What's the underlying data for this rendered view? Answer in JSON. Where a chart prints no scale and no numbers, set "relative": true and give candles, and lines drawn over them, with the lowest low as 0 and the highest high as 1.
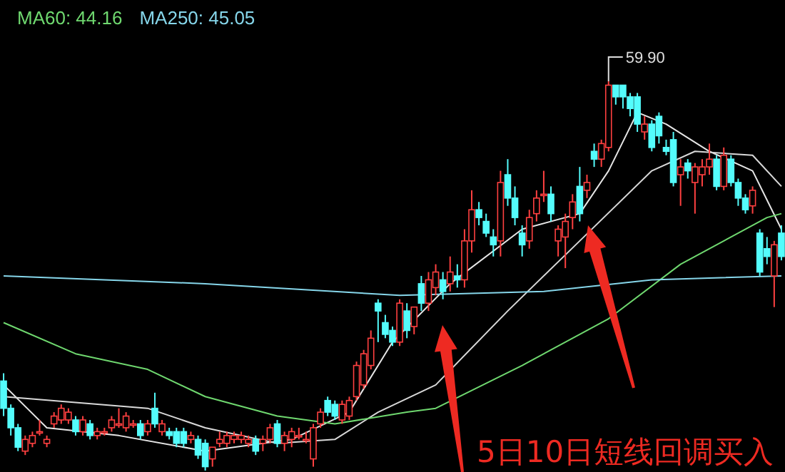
{
  "chart_data": {
    "type": "candlestick",
    "relative": true,
    "legend": "top left",
    "categories": [
      null,
      null,
      null,
      null,
      null,
      null,
      null,
      null,
      null,
      null,
      null,
      null,
      null,
      null,
      null,
      null,
      null,
      null,
      null,
      null,
      null,
      null,
      null,
      null,
      null,
      null,
      null,
      null,
      null,
      null,
      null,
      null,
      null,
      null,
      null,
      null,
      null,
      null,
      null,
      null,
      null,
      null,
      null,
      null,
      null,
      null,
      null,
      null,
      null,
      null,
      null,
      null,
      null,
      null,
      null,
      null,
      null,
      null,
      null,
      null,
      null,
      null,
      null,
      null,
      null,
      null,
      null,
      null,
      null,
      null,
      null,
      null,
      null,
      null,
      null,
      null,
      null,
      null,
      null,
      null,
      null,
      null,
      null,
      null,
      null,
      null,
      null,
      null,
      null,
      null,
      null,
      null,
      null,
      null,
      null,
      null,
      null,
      null,
      null,
      null,
      null,
      null,
      null,
      null,
      null,
      null,
      null,
      null,
      null
    ],
    "ohlc": [
      [
        0.23,
        0.25,
        0.14,
        0.16
      ],
      [
        0.16,
        0.17,
        0.09,
        0.11
      ],
      [
        0.11,
        0.12,
        0.05,
        0.06
      ],
      [
        0.05,
        0.09,
        0.04,
        0.08
      ],
      [
        0.07,
        0.1,
        0.06,
        0.09
      ],
      [
        0.1,
        0.13,
        0.09,
        0.1
      ],
      [
        0.07,
        0.09,
        0.06,
        0.08
      ],
      [
        0.12,
        0.15,
        0.11,
        0.14
      ],
      [
        0.13,
        0.17,
        0.12,
        0.16
      ],
      [
        0.13,
        0.16,
        0.12,
        0.15
      ],
      [
        0.13,
        0.14,
        0.09,
        0.1
      ],
      [
        0.1,
        0.14,
        0.09,
        0.13
      ],
      [
        0.12,
        0.13,
        0.08,
        0.09
      ],
      [
        0.09,
        0.11,
        0.08,
        0.1
      ],
      [
        0.1,
        0.11,
        0.09,
        0.1
      ],
      [
        0.11,
        0.14,
        0.1,
        0.13
      ],
      [
        0.12,
        0.16,
        0.11,
        0.12
      ],
      [
        0.11,
        0.15,
        0.1,
        0.14
      ],
      [
        0.12,
        0.13,
        0.11,
        0.12
      ],
      [
        0.12,
        0.13,
        0.08,
        0.09
      ],
      [
        0.1,
        0.13,
        0.09,
        0.12
      ],
      [
        0.16,
        0.2,
        0.11,
        0.12
      ],
      [
        0.1,
        0.13,
        0.09,
        0.12
      ],
      [
        0.1,
        0.11,
        0.08,
        0.09
      ],
      [
        0.1,
        0.11,
        0.06,
        0.07
      ],
      [
        0.1,
        0.11,
        0.06,
        0.07
      ],
      [
        0.08,
        0.1,
        0.07,
        0.09
      ],
      [
        0.08,
        0.09,
        0.03,
        0.04
      ],
      [
        0.07,
        0.08,
        0.0,
        0.01
      ],
      [
        0.03,
        0.06,
        0.01,
        0.06
      ],
      [
        0.07,
        0.1,
        0.06,
        0.08
      ],
      [
        0.07,
        0.1,
        0.06,
        0.09
      ],
      [
        0.08,
        0.1,
        0.07,
        0.09
      ],
      [
        0.08,
        0.1,
        0.07,
        0.09
      ],
      [
        0.07,
        0.09,
        0.06,
        0.08
      ],
      [
        0.08,
        0.09,
        0.04,
        0.05
      ],
      [
        0.07,
        0.09,
        0.05,
        0.08
      ],
      [
        0.08,
        0.12,
        0.07,
        0.11
      ],
      [
        0.12,
        0.13,
        0.06,
        0.07
      ],
      [
        0.07,
        0.1,
        0.05,
        0.09
      ],
      [
        0.08,
        0.11,
        0.06,
        0.1
      ],
      [
        0.09,
        0.11,
        0.08,
        0.09
      ],
      [
        0.08,
        0.1,
        0.07,
        0.08
      ],
      [
        0.03,
        0.12,
        0.01,
        0.11
      ],
      [
        0.12,
        0.16,
        0.11,
        0.15
      ],
      [
        0.18,
        0.19,
        0.14,
        0.15
      ],
      [
        0.17,
        0.18,
        0.13,
        0.14
      ],
      [
        0.13,
        0.18,
        0.12,
        0.17
      ],
      [
        0.14,
        0.19,
        0.13,
        0.18
      ],
      [
        0.19,
        0.28,
        0.18,
        0.27
      ],
      [
        0.22,
        0.31,
        0.21,
        0.3
      ],
      [
        0.27,
        0.36,
        0.26,
        0.34
      ],
      [
        0.43,
        0.44,
        0.33,
        0.41
      ],
      [
        0.38,
        0.4,
        0.34,
        0.35
      ],
      [
        0.36,
        0.37,
        0.32,
        0.33
      ],
      [
        0.33,
        0.44,
        0.32,
        0.43
      ],
      [
        0.41,
        0.43,
        0.34,
        0.36
      ],
      [
        0.37,
        0.42,
        0.35,
        0.42
      ],
      [
        0.48,
        0.5,
        0.41,
        0.43
      ],
      [
        0.43,
        0.51,
        0.41,
        0.49
      ],
      [
        0.47,
        0.53,
        0.45,
        0.51
      ],
      [
        0.49,
        0.51,
        0.44,
        0.46
      ],
      [
        0.48,
        0.55,
        0.46,
        0.51
      ],
      [
        0.5,
        0.53,
        0.47,
        0.49
      ],
      [
        0.49,
        0.62,
        0.47,
        0.59
      ],
      [
        0.59,
        0.72,
        0.56,
        0.67
      ],
      [
        0.67,
        0.69,
        0.63,
        0.65
      ],
      [
        0.64,
        0.66,
        0.6,
        0.61
      ],
      [
        0.6,
        0.62,
        0.55,
        0.58
      ],
      [
        0.59,
        0.77,
        0.55,
        0.74
      ],
      [
        0.76,
        0.8,
        0.68,
        0.7
      ],
      [
        0.7,
        0.73,
        0.63,
        0.65
      ],
      [
        0.61,
        0.63,
        0.55,
        0.58
      ],
      [
        0.59,
        0.67,
        0.57,
        0.65
      ],
      [
        0.66,
        0.72,
        0.64,
        0.7
      ],
      [
        0.71,
        0.77,
        0.69,
        0.71
      ],
      [
        0.71,
        0.73,
        0.64,
        0.66
      ],
      [
        0.59,
        0.63,
        0.55,
        0.62
      ],
      [
        0.6,
        0.66,
        0.52,
        0.64
      ],
      [
        0.65,
        0.71,
        0.62,
        0.69
      ],
      [
        0.73,
        0.78,
        0.64,
        0.66
      ],
      [
        0.72,
        0.76,
        0.7,
        0.74
      ],
      [
        0.82,
        0.84,
        0.78,
        0.8
      ],
      [
        0.8,
        0.85,
        0.78,
        0.84
      ],
      [
        0.83,
        1.0,
        0.82,
        0.99
      ],
      [
        0.99,
        0.99,
        0.94,
        0.96
      ],
      [
        0.99,
        0.99,
        0.93,
        0.96
      ],
      [
        0.96,
        0.97,
        0.91,
        0.93
      ],
      [
        0.96,
        0.97,
        0.87,
        0.89
      ],
      [
        0.87,
        0.91,
        0.85,
        0.89
      ],
      [
        0.89,
        0.9,
        0.82,
        0.83
      ],
      [
        0.91,
        0.92,
        0.84,
        0.86
      ],
      [
        0.83,
        0.85,
        0.81,
        0.82
      ],
      [
        0.85,
        0.87,
        0.73,
        0.74
      ],
      [
        0.76,
        0.8,
        0.68,
        0.78
      ],
      [
        0.79,
        0.8,
        0.75,
        0.77
      ],
      [
        0.74,
        0.79,
        0.66,
        0.78
      ],
      [
        0.76,
        0.8,
        0.73,
        0.78
      ],
      [
        0.78,
        0.84,
        0.76,
        0.8
      ],
      [
        0.8,
        0.81,
        0.72,
        0.73
      ],
      [
        0.73,
        0.83,
        0.72,
        0.81
      ],
      [
        0.8,
        0.81,
        0.73,
        0.74
      ],
      [
        0.74,
        0.75,
        0.68,
        0.7
      ],
      [
        0.7,
        0.71,
        0.66,
        0.67
      ],
      [
        0.68,
        0.73,
        0.66,
        0.72
      ],
      [
        0.61,
        0.62,
        0.5,
        0.51
      ],
      [
        0.57,
        0.6,
        0.53,
        0.55
      ],
      [
        0.5,
        0.59,
        0.42,
        0.58
      ],
      [
        0.61,
        0.63,
        0.54,
        0.55
      ]
    ],
    "series": [
      {
        "type": "line",
        "color": "#e6e6e6",
        "values": [
          0.22,
          null,
          null,
          null,
          null,
          null,
          0.11,
          null,
          null,
          null,
          null,
          null,
          null,
          null,
          null,
          null,
          0.09,
          null,
          null,
          null,
          null,
          null,
          null,
          null,
          null,
          null,
          null,
          null,
          0.05,
          null,
          null,
          null,
          null,
          null,
          null,
          null,
          null,
          null,
          null,
          null,
          0.08,
          null,
          null,
          null,
          null,
          null,
          null,
          null,
          0.15,
          null,
          null,
          null,
          null,
          null,
          0.33,
          null,
          null,
          null,
          null,
          null,
          null,
          null,
          0.48,
          null,
          null,
          null,
          null,
          null,
          null,
          null,
          null,
          null,
          0.62,
          null,
          null,
          null,
          null,
          null,
          null,
          null,
          0.66,
          null,
          null,
          null,
          0.77,
          null,
          null,
          null,
          0.92,
          null,
          null,
          null,
          0.89,
          null,
          null,
          null,
          null,
          null,
          0.82,
          null,
          null,
          null,
          null,
          null,
          0.77,
          null,
          null,
          null,
          0.62
        ]
      },
      {
        "type": "line",
        "color": "#d8d8d8",
        "values": [
          0.19,
          null,
          null,
          null,
          null,
          null,
          null,
          null,
          null,
          null,
          null,
          null,
          null,
          null,
          null,
          null,
          null,
          null,
          null,
          null,
          0.16,
          null,
          null,
          null,
          null,
          null,
          null,
          null,
          0.11,
          null,
          null,
          null,
          null,
          null,
          null,
          null,
          null,
          null,
          0.07,
          null,
          null,
          null,
          null,
          null,
          null,
          null,
          0.08,
          null,
          null,
          null,
          null,
          null,
          0.15,
          null,
          null,
          null,
          null,
          null,
          null,
          null,
          0.22,
          null,
          null,
          null,
          null,
          null,
          null,
          null,
          null,
          null,
          0.41,
          null,
          null,
          null,
          null,
          null,
          null,
          null,
          null,
          null,
          0.59,
          null,
          null,
          null,
          null,
          null,
          null,
          null,
          null,
          null,
          0.77,
          null,
          null,
          null,
          null,
          null,
          0.82,
          null,
          null,
          null,
          null,
          null,
          null,
          null,
          0.81,
          null,
          null,
          null,
          0.73
        ]
      },
      {
        "type": "line",
        "name": "MA60: 44.16",
        "color": "#6fd86f",
        "values": [
          0.38,
          null,
          null,
          null,
          null,
          null,
          null,
          null,
          null,
          null,
          0.3,
          null,
          null,
          null,
          null,
          null,
          null,
          null,
          null,
          null,
          0.26,
          null,
          null,
          null,
          null,
          null,
          null,
          null,
          0.19,
          null,
          null,
          null,
          null,
          null,
          null,
          null,
          null,
          null,
          0.14,
          null,
          null,
          null,
          null,
          null,
          null,
          null,
          0.12,
          null,
          null,
          null,
          null,
          null,
          null,
          null,
          null,
          null,
          0.15,
          null,
          null,
          null,
          0.16,
          null,
          null,
          null,
          null,
          null,
          null,
          null,
          null,
          null,
          null,
          null,
          0.27,
          null,
          null,
          null,
          null,
          null,
          null,
          null,
          null,
          null,
          null,
          null,
          0.39,
          null,
          null,
          null,
          null,
          null,
          null,
          null,
          null,
          null,
          0.53,
          null,
          null,
          null,
          null,
          null,
          null,
          null,
          null,
          null,
          null,
          null,
          0.65,
          null,
          0.66
        ]
      },
      {
        "type": "line",
        "name": "MA250: 45.05",
        "color": "#86d6ea",
        "values": [
          0.5,
          null,
          null,
          null,
          null,
          null,
          null,
          null,
          null,
          null,
          null,
          null,
          null,
          null,
          null,
          null,
          null,
          null,
          null,
          null,
          null,
          null,
          null,
          null,
          null,
          null,
          null,
          null,
          0.48,
          null,
          null,
          null,
          null,
          null,
          null,
          null,
          null,
          null,
          null,
          null,
          null,
          null,
          null,
          null,
          null,
          null,
          null,
          null,
          null,
          null,
          null,
          null,
          null,
          null,
          null,
          0.45,
          null,
          null,
          null,
          null,
          null,
          null,
          null,
          null,
          null,
          null,
          null,
          null,
          null,
          null,
          null,
          null,
          null,
          null,
          null,
          0.46,
          null,
          null,
          null,
          null,
          null,
          null,
          null,
          null,
          null,
          null,
          null,
          null,
          null,
          null,
          0.49,
          null,
          null,
          null,
          null,
          null,
          null,
          null,
          null,
          null,
          null,
          null,
          null,
          null,
          null,
          null,
          null,
          null,
          0.5
        ]
      }
    ],
    "annotations": [
      "59.90",
      "5日10日短线回调买入"
    ]
  }
}
